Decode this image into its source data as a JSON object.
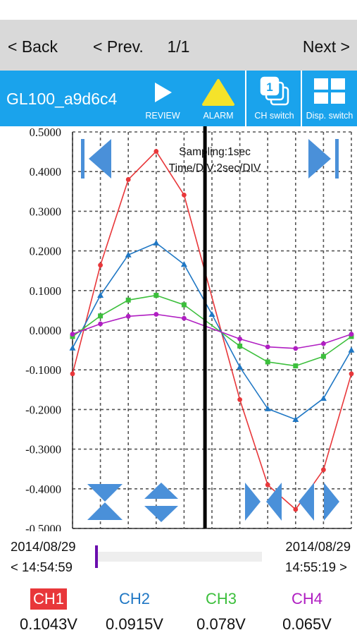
{
  "nav": {
    "back_label": "< Back",
    "prev_label": "< Prev.",
    "page_indicator": "1/1",
    "next_label": "Next >"
  },
  "toolbar": {
    "device_name": "GL100_a9d6c4",
    "review_label": "REVIEW",
    "alarm_label": "ALARM",
    "ch_switch_label": "CH switch",
    "ch_switch_badge": "1",
    "disp_switch_label": "Disp. switch"
  },
  "chart": {
    "sampling_text": "Sampling:1sec",
    "timediv_text": "Time/DIV:2sec/DIV"
  },
  "colors": {
    "toolbar": "#1aa3ec",
    "ch1": "#e8373a",
    "ch2": "#1f77c4",
    "ch3": "#3cbf3c",
    "ch4": "#b01ec2",
    "control_arrows": "#4a90d9"
  },
  "icons": {
    "review": "play-icon",
    "alarm": "warning-triangle-icon",
    "ch_switch": "stacked-pages-icon",
    "disp_switch": "grid-icon",
    "scroll_first": "skip-to-start-icon",
    "scroll_last": "skip-to-end-icon",
    "zoom_in_y": "expand-vertical-icon",
    "zoom_out_y": "shrink-vertical-icon",
    "zoom_time_out": "arrows-outward-icon",
    "zoom_time_in": "arrows-inward-icon"
  },
  "chart_data": {
    "type": "line",
    "ylim": [
      -0.5,
      0.5
    ],
    "yticks": [
      "0.5000",
      "0.4000",
      "0.3000",
      "0.2000",
      "0.1000",
      "0.0000",
      "-0.1000",
      "-0.2000",
      "-0.3000",
      "-0.4000",
      "-0.5000"
    ],
    "x": [
      0,
      1,
      2,
      3,
      4,
      5,
      6,
      7,
      8,
      9,
      10,
      11,
      12,
      13,
      14,
      15,
      16,
      17,
      18,
      19,
      20
    ],
    "cursor_x": 9.5,
    "grid": true,
    "series": [
      {
        "name": "CH1",
        "color": "#e8373a",
        "values": [
          -0.11,
          null,
          0.164,
          null,
          0.38,
          null,
          0.451,
          null,
          0.341,
          null,
          null,
          null,
          -0.175,
          null,
          -0.39,
          null,
          -0.452,
          null,
          -0.352,
          null,
          -0.11
        ]
      },
      {
        "name": "CH2",
        "color": "#1f77c4",
        "values": [
          -0.045,
          null,
          0.088,
          null,
          0.19,
          null,
          0.22,
          null,
          0.166,
          null,
          0.04,
          null,
          -0.093,
          null,
          -0.198,
          null,
          -0.225,
          null,
          -0.172,
          null,
          -0.05
        ]
      },
      {
        "name": "CH3",
        "color": "#3cbf3c",
        "values": [
          -0.016,
          null,
          0.036,
          null,
          0.076,
          null,
          0.088,
          null,
          0.064,
          null,
          null,
          null,
          -0.04,
          null,
          -0.08,
          null,
          -0.09,
          null,
          -0.066,
          null,
          -0.016
        ]
      },
      {
        "name": "CH4",
        "color": "#b01ec2",
        "values": [
          -0.01,
          null,
          0.016,
          null,
          0.035,
          null,
          0.04,
          null,
          0.03,
          null,
          null,
          null,
          -0.022,
          null,
          -0.042,
          null,
          -0.046,
          null,
          -0.034,
          null,
          -0.01
        ]
      }
    ]
  },
  "time_range": {
    "start_date": "2014/08/29",
    "start_time": "< 14:54:59",
    "end_date": "2014/08/29",
    "end_time": "14:55:19 >",
    "scroll_position": 0.0
  },
  "channels": [
    {
      "name": "CH1",
      "value": "0.1043V",
      "color": "#e8373a",
      "selected": true
    },
    {
      "name": "CH2",
      "value": "0.0915V",
      "color": "#1f77c4",
      "selected": false
    },
    {
      "name": "CH3",
      "value": "0.078V",
      "color": "#3cbf3c",
      "selected": false
    },
    {
      "name": "CH4",
      "value": "0.065V",
      "color": "#b01ec2",
      "selected": false
    }
  ]
}
